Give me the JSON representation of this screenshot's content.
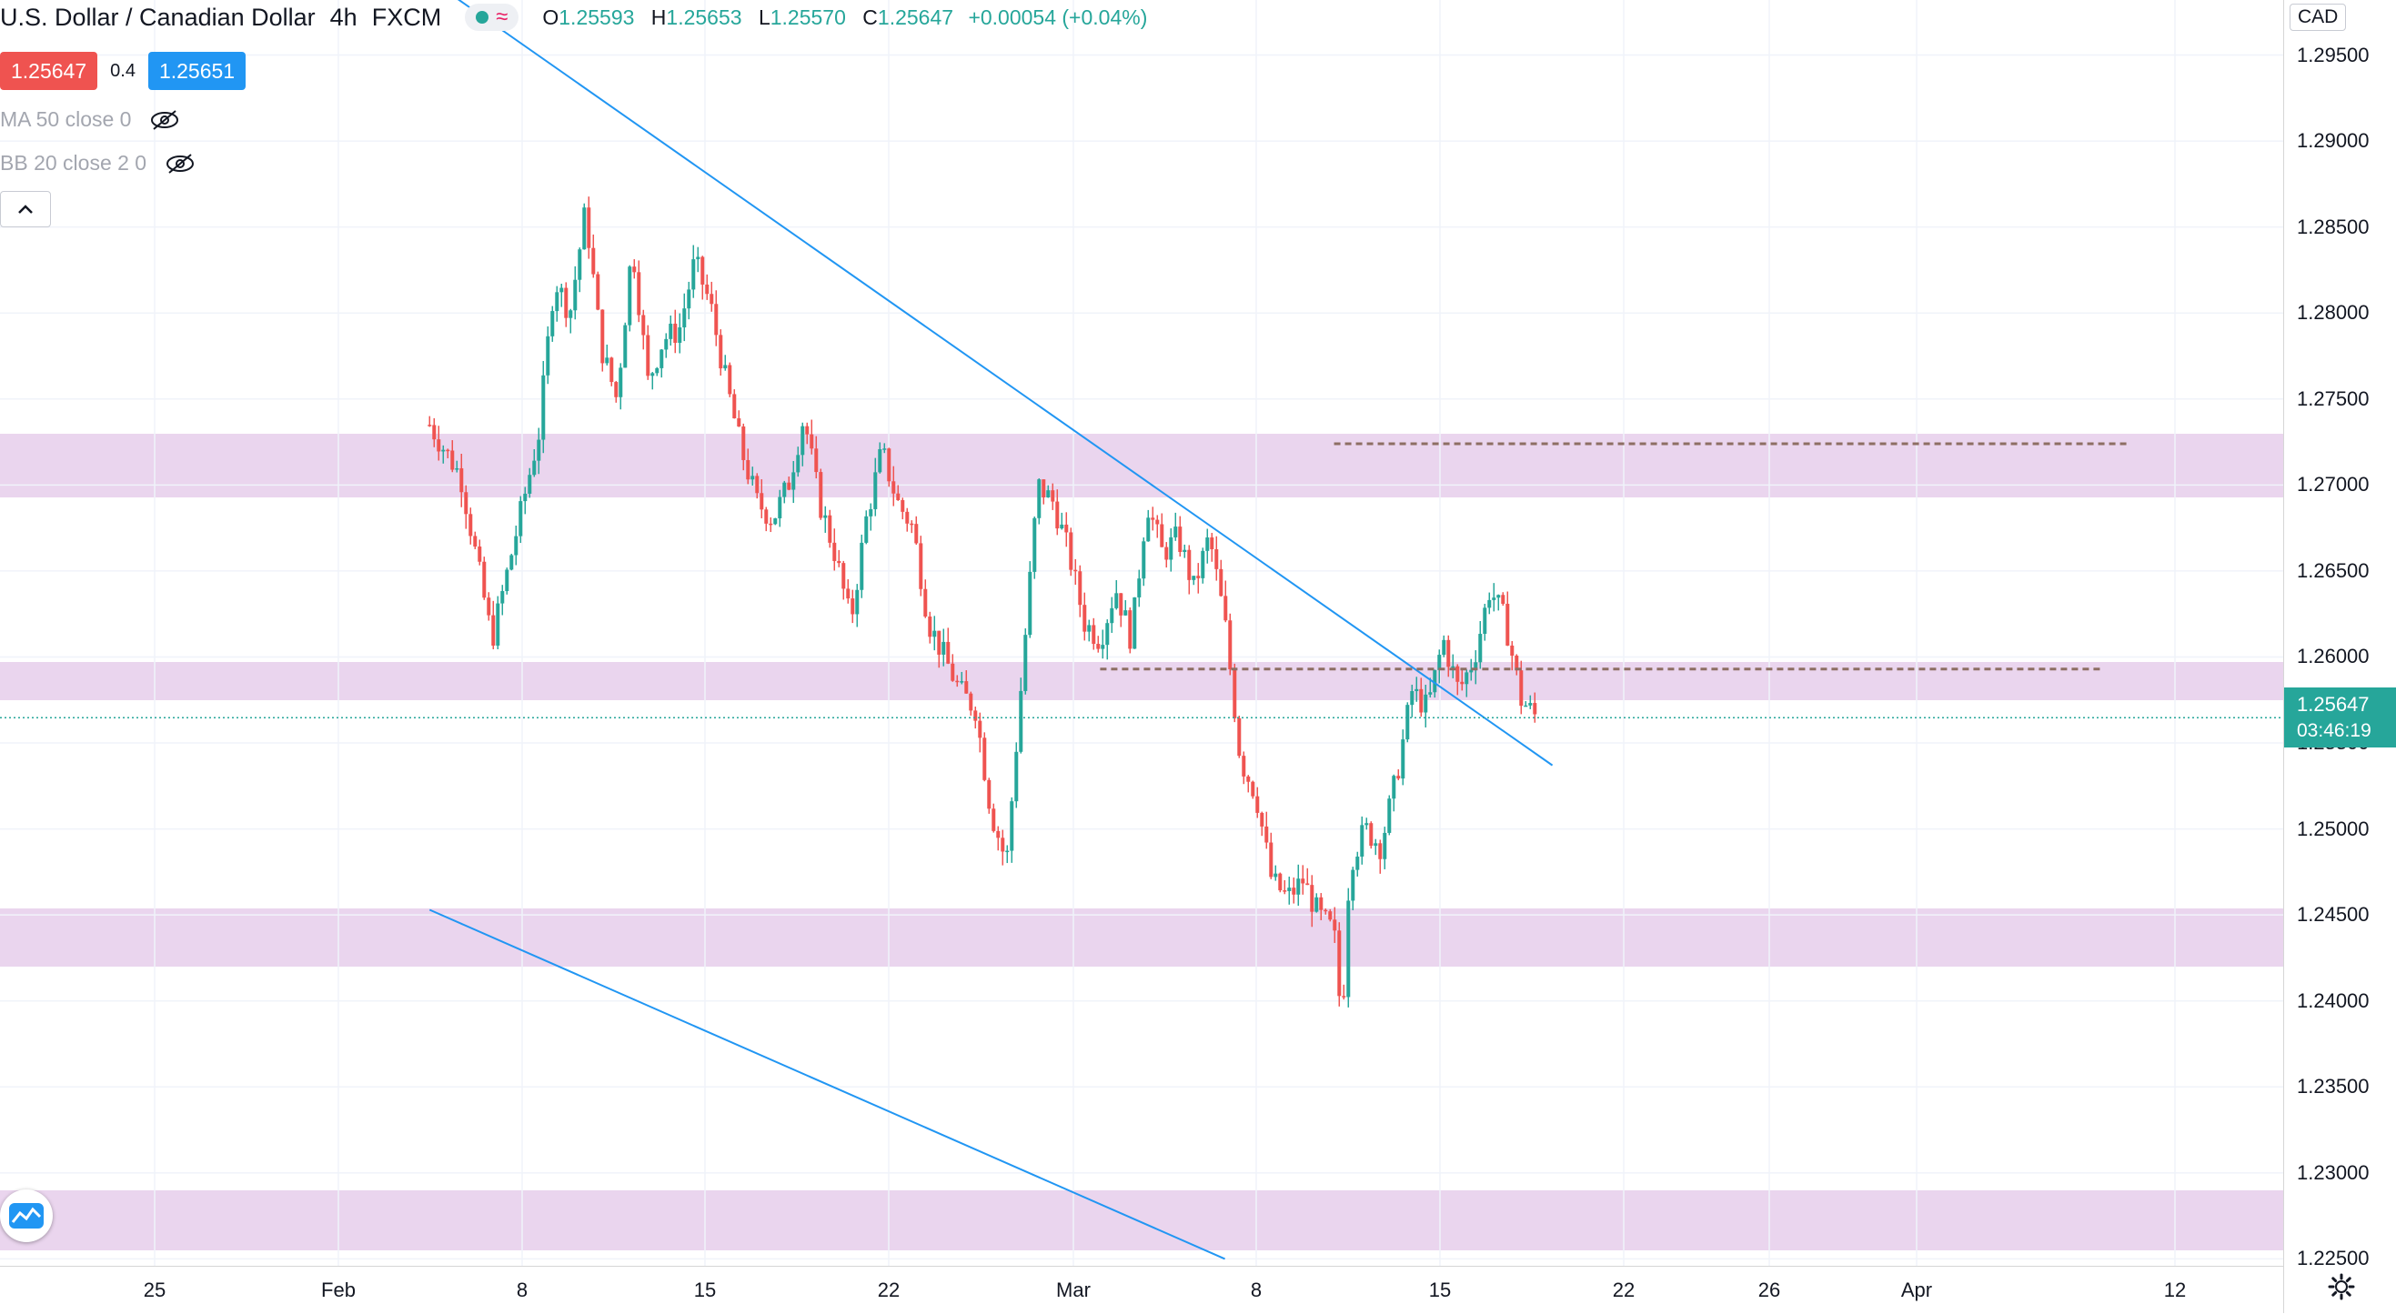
{
  "legend": {
    "title": "U.S. Dollar / Canadian Dollar",
    "interval": "4h",
    "exchange": "FXCM",
    "wave_glyph": "≈",
    "ohlc": {
      "o_label": "O",
      "o_value": "1.25593",
      "h_label": "H",
      "h_value": "1.25653",
      "l_label": "L",
      "l_value": "1.25570",
      "c_label": "C",
      "c_value": "1.25647",
      "change": "+0.00054 (+0.04%)"
    }
  },
  "trade": {
    "sell_price": "1.25647",
    "spread": "0.4",
    "buy_price": "1.25651"
  },
  "indicators": [
    {
      "label": "MA 50 close 0",
      "icon": "eye-off-icon"
    },
    {
      "label": "BB 20 close 2 0",
      "icon": "eye-off-icon"
    }
  ],
  "collapse_glyph": "^",
  "price_axis": {
    "currency": "CAD",
    "ticks": [
      "1.29500",
      "1.29000",
      "1.28500",
      "1.28000",
      "1.27500",
      "1.27000",
      "1.26500",
      "1.26000",
      "1.25500",
      "1.25000",
      "1.24500",
      "1.24000",
      "1.23500",
      "1.23000",
      "1.22500"
    ],
    "last_price": "1.25647",
    "countdown": "03:46:19"
  },
  "time_axis": {
    "ticks": [
      "25",
      "Feb",
      "8",
      "15",
      "22",
      "Mar",
      "8",
      "15",
      "22",
      "26",
      "Apr",
      "12"
    ]
  },
  "colors": {
    "up": "#26a69a",
    "down": "#ef5350",
    "zone": "#ead5ee",
    "trendline": "#2196f3",
    "level_dash": "#8d6e63"
  },
  "chart_data": {
    "type": "candlestick",
    "title": "U.S. Dollar / Canadian Dollar",
    "interval": "4h",
    "ylim": [
      1.2246,
      1.2982
    ],
    "y_ticks": [
      1.295,
      1.29,
      1.285,
      1.28,
      1.275,
      1.27,
      1.265,
      1.26,
      1.255,
      1.25,
      1.245,
      1.24,
      1.235,
      1.23,
      1.225
    ],
    "zones": [
      {
        "from": 1.2693,
        "to": 1.273
      },
      {
        "from": 1.2575,
        "to": 1.2597
      },
      {
        "from": 1.242,
        "to": 1.2454
      },
      {
        "from": 1.2255,
        "to": 1.229
      }
    ],
    "levels": [
      {
        "value": 1.2724,
        "from": "2021-03-19",
        "to": "Apr 8"
      },
      {
        "value": 1.2593,
        "from": "2021-03-04",
        "to": "Apr 9"
      }
    ],
    "trendlines": [
      {
        "from": [
          "2021-01-20",
          1.2994
        ],
        "to": [
          "2021-04-02",
          1.2537
        ]
      },
      {
        "from": [
          "2021-01-20",
          1.2453
        ],
        "to": [
          "2021-03-12",
          1.225
        ]
      }
    ],
    "x_ticks": [
      "25",
      "Feb",
      "8",
      "15",
      "22",
      "Mar",
      "8",
      "15",
      "22",
      "26",
      "Apr",
      "12"
    ],
    "last": {
      "open": 1.25593,
      "high": 1.25653,
      "low": 1.2557,
      "close": 1.25647
    },
    "anchors": [
      {
        "date": "2021-01-20",
        "price": 1.2735
      },
      {
        "date": "2021-01-22",
        "price": 1.2705
      },
      {
        "date": "2021-01-24",
        "price": 1.261
      },
      {
        "date": "2021-01-27",
        "price": 1.273
      },
      {
        "date": "2021-01-28",
        "price": 1.282
      },
      {
        "date": "2021-01-29",
        "price": 1.28
      },
      {
        "date": "2021-01-30",
        "price": 1.286
      },
      {
        "date": "2021-01-31",
        "price": 1.278
      },
      {
        "date": "2021-02-01",
        "price": 1.275
      },
      {
        "date": "2021-02-02",
        "price": 1.284
      },
      {
        "date": "2021-02-03",
        "price": 1.276
      },
      {
        "date": "2021-02-04",
        "price": 1.2785
      },
      {
        "date": "2021-02-05",
        "price": 1.279
      },
      {
        "date": "2021-02-06",
        "price": 1.283
      },
      {
        "date": "2021-02-07",
        "price": 1.2805
      },
      {
        "date": "2021-02-08",
        "price": 1.276
      },
      {
        "date": "2021-02-09",
        "price": 1.272
      },
      {
        "date": "2021-02-10",
        "price": 1.269
      },
      {
        "date": "2021-02-11",
        "price": 1.268
      },
      {
        "date": "2021-02-12",
        "price": 1.27
      },
      {
        "date": "2021-02-13",
        "price": 1.274
      },
      {
        "date": "2021-02-14",
        "price": 1.269
      },
      {
        "date": "2021-02-15",
        "price": 1.266
      },
      {
        "date": "2021-02-16",
        "price": 1.262
      },
      {
        "date": "2021-02-17",
        "price": 1.268
      },
      {
        "date": "2021-02-18",
        "price": 1.272
      },
      {
        "date": "2021-02-19",
        "price": 1.269
      },
      {
        "date": "2021-02-20",
        "price": 1.2675
      },
      {
        "date": "2021-02-21",
        "price": 1.262
      },
      {
        "date": "2021-02-22",
        "price": 1.26
      },
      {
        "date": "2021-02-23",
        "price": 1.258
      },
      {
        "date": "2021-02-24",
        "price": 1.257
      },
      {
        "date": "2021-02-25",
        "price": 1.251
      },
      {
        "date": "2021-02-26",
        "price": 1.248
      },
      {
        "date": "2021-02-27",
        "price": 1.259
      },
      {
        "date": "2021-02-28",
        "price": 1.27
      },
      {
        "date": "2021-03-01",
        "price": 1.269
      },
      {
        "date": "2021-03-02",
        "price": 1.266
      },
      {
        "date": "2021-03-03",
        "price": 1.262
      },
      {
        "date": "2021-03-04",
        "price": 1.261
      },
      {
        "date": "2021-03-05",
        "price": 1.264
      },
      {
        "date": "2021-03-06",
        "price": 1.261
      },
      {
        "date": "2021-03-07",
        "price": 1.269
      },
      {
        "date": "2021-03-08",
        "price": 1.266
      },
      {
        "date": "2021-03-09",
        "price": 1.267
      },
      {
        "date": "2021-03-10",
        "price": 1.264
      },
      {
        "date": "2021-03-11",
        "price": 1.267
      },
      {
        "date": "2021-03-12",
        "price": 1.262
      },
      {
        "date": "2021-03-13",
        "price": 1.254
      },
      {
        "date": "2021-03-14",
        "price": 1.252
      },
      {
        "date": "2021-03-15",
        "price": 1.247
      },
      {
        "date": "2021-03-16",
        "price": 1.246
      },
      {
        "date": "2021-03-17",
        "price": 1.247
      },
      {
        "date": "2021-03-18",
        "price": 1.245
      },
      {
        "date": "2021-03-19",
        "price": 1.244
      },
      {
        "date": "2021-03-19T12:00",
        "price": 1.2385
      },
      {
        "date": "2021-03-20",
        "price": 1.248
      },
      {
        "date": "2021-03-21",
        "price": 1.25
      },
      {
        "date": "2021-03-22",
        "price": 1.249
      },
      {
        "date": "2021-03-23",
        "price": 1.253
      },
      {
        "date": "2021-03-24",
        "price": 1.258
      },
      {
        "date": "2021-03-25",
        "price": 1.257
      },
      {
        "date": "2021-03-26",
        "price": 1.261
      },
      {
        "date": "2021-03-27",
        "price": 1.258
      },
      {
        "date": "2021-03-28",
        "price": 1.26
      },
      {
        "date": "2021-03-29",
        "price": 1.264
      },
      {
        "date": "2021-03-30",
        "price": 1.262
      },
      {
        "date": "2021-03-31",
        "price": 1.2575
      },
      {
        "date": "2021-04-01",
        "price": 1.25647
      }
    ]
  }
}
